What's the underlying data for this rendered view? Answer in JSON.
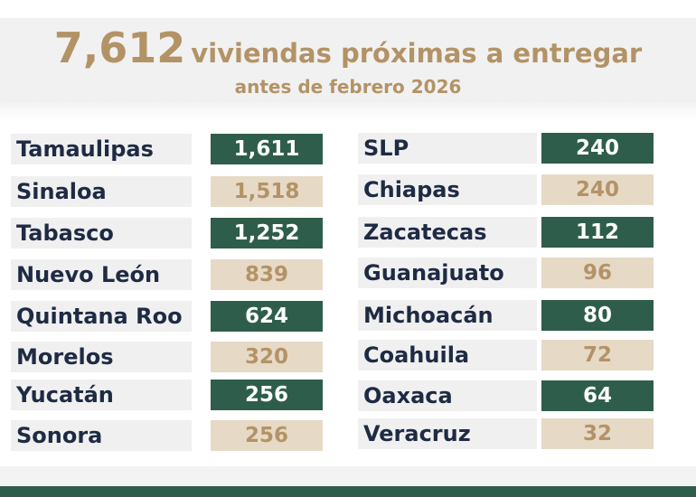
{
  "header": {
    "count": "7,612",
    "title_rest": "viviendas próximas a entregar",
    "subtitle": "antes de febrero 2026"
  },
  "colors": {
    "green": "#2e5e4b",
    "tan": "#e6d9c6",
    "gold_text": "#b39366",
    "navy_text": "#1f2a44"
  },
  "left_column": [
    {
      "state": "Tamaulipas",
      "value": "1,611",
      "style": "green"
    },
    {
      "state": "Sinaloa",
      "value": "1,518",
      "style": "tan"
    },
    {
      "state": "Tabasco",
      "value": "1,252",
      "style": "green"
    },
    {
      "state": "Nuevo León",
      "value": "839",
      "style": "tan"
    },
    {
      "state": "Quintana Roo",
      "value": "624",
      "style": "green"
    },
    {
      "state": "Morelos",
      "value": "320",
      "style": "tan"
    },
    {
      "state": "Yucatán",
      "value": "256",
      "style": "green"
    },
    {
      "state": "Sonora",
      "value": "256",
      "style": "tan"
    }
  ],
  "right_column": [
    {
      "state": "SLP",
      "value": "240",
      "style": "green"
    },
    {
      "state": "Chiapas",
      "value": "240",
      "style": "tan"
    },
    {
      "state": "Zacatecas",
      "value": "112",
      "style": "green"
    },
    {
      "state": "Guanajuato",
      "value": "96",
      "style": "tan"
    },
    {
      "state": "Michoacán",
      "value": "80",
      "style": "green"
    },
    {
      "state": "Coahuila",
      "value": "72",
      "style": "tan"
    },
    {
      "state": "Oaxaca",
      "value": "64",
      "style": "green"
    },
    {
      "state": "Veracruz",
      "value": "32",
      "style": "tan"
    }
  ]
}
